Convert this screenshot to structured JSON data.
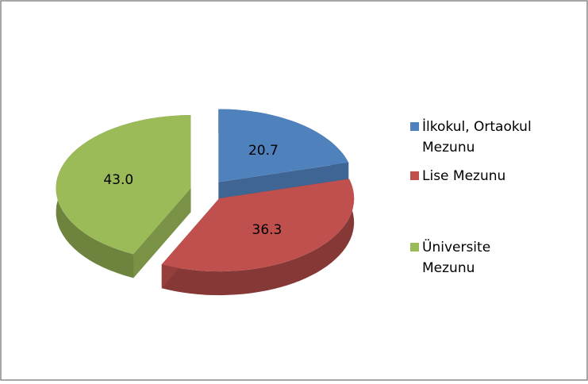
{
  "chart_data": {
    "type": "pie",
    "categories": [
      "İlkokul, Ortaokul Mezunu",
      "Lise Mezunu",
      "Üniversite Mezunu"
    ],
    "values": [
      20.7,
      36.3,
      43.0
    ],
    "value_labels": [
      "20.7",
      "36.3",
      "43.0"
    ],
    "colors": [
      "#4f81bd",
      "#c0504d",
      "#9bbb59"
    ],
    "legend": "right"
  }
}
